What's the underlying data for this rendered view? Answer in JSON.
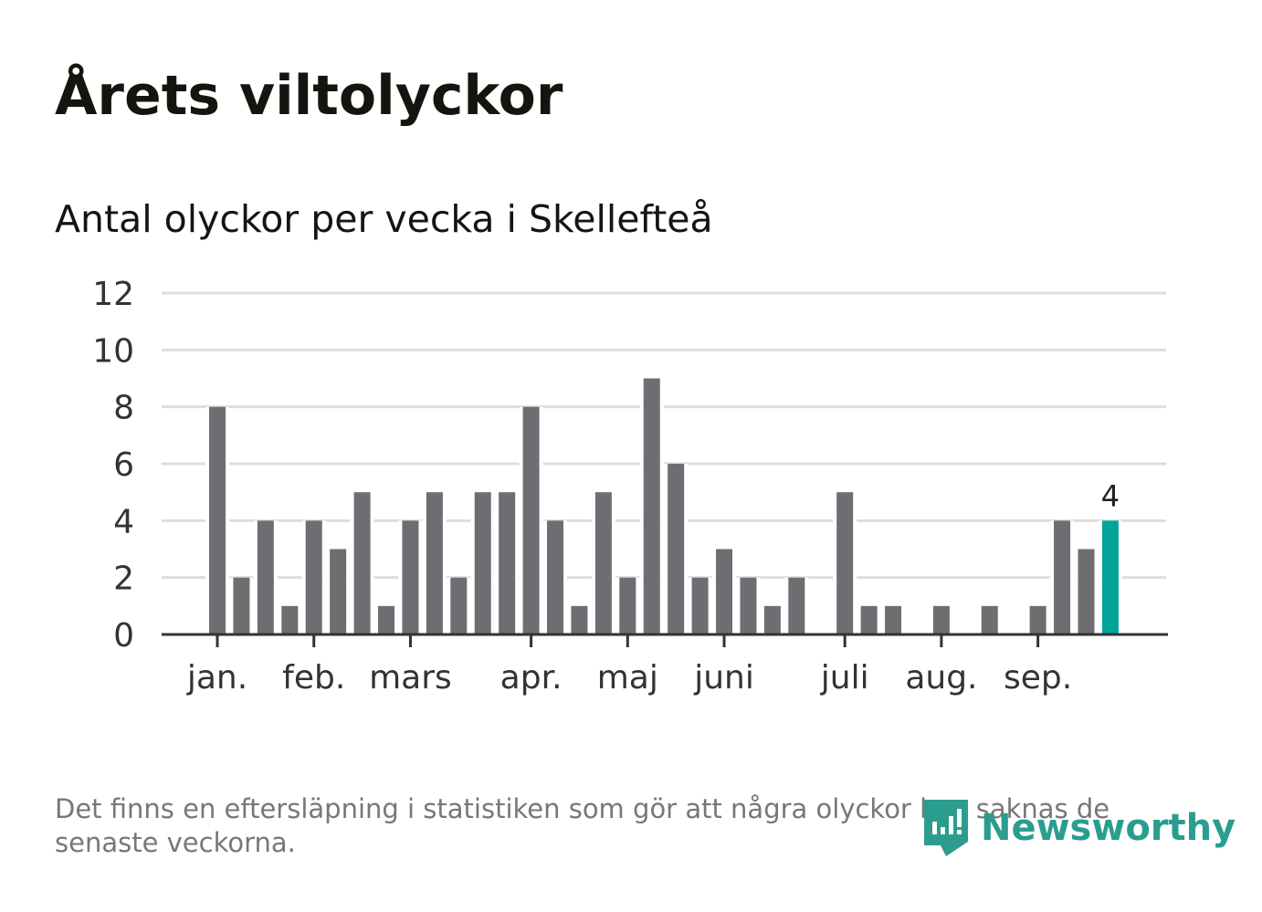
{
  "title": "Årets viltolyckor",
  "subtitle": "Antal olyckor per vecka i Skellefteå",
  "footnote": "Det finns en eftersläpning i statistiken som gör att några olyckor kan saknas de senaste veckorna.",
  "logo": "Newsworthy",
  "colors": {
    "bar": "#6e6d72",
    "highlight": "#00a49a",
    "grid": "#dddddd",
    "axis": "#333333",
    "logo": "#2a9d8f"
  },
  "chart_data": {
    "type": "bar",
    "title": "Antal olyckor per vecka i Skellefteå",
    "xlabel": "",
    "ylabel": "",
    "ylim": [
      0,
      12
    ],
    "yticks": [
      0,
      2,
      4,
      6,
      8,
      10,
      12
    ],
    "values": [
      8,
      2,
      4,
      1,
      4,
      3,
      5,
      1,
      4,
      5,
      2,
      5,
      5,
      8,
      4,
      1,
      5,
      2,
      9,
      6,
      2,
      3,
      2,
      1,
      2,
      0,
      5,
      1,
      1,
      0,
      1,
      0,
      1,
      0,
      1,
      4,
      3,
      4
    ],
    "highlight_index": 37,
    "highlight_label": "4",
    "month_ticks": [
      {
        "label": "jan.",
        "week_index": 0
      },
      {
        "label": "feb.",
        "week_index": 4
      },
      {
        "label": "mars",
        "week_index": 8
      },
      {
        "label": "apr.",
        "week_index": 13
      },
      {
        "label": "maj",
        "week_index": 17
      },
      {
        "label": "juni",
        "week_index": 21
      },
      {
        "label": "juli",
        "week_index": 26
      },
      {
        "label": "aug.",
        "week_index": 30
      },
      {
        "label": "sep.",
        "week_index": 34
      }
    ],
    "grid": true
  }
}
